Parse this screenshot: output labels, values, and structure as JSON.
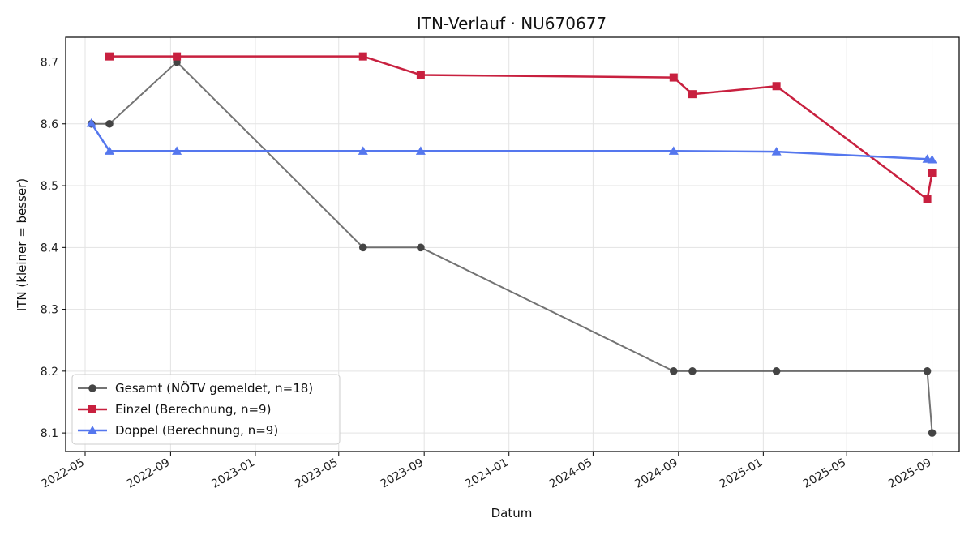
{
  "chart_data": {
    "type": "line",
    "title": "ITN-Verlauf · NU670677",
    "xlabel": "Datum",
    "ylabel": "ITN  (kleiner = besser)",
    "ylim": [
      8.07,
      8.74
    ],
    "xlim": [
      "2022-04-03",
      "2025-10-10"
    ],
    "x_ticks": [
      "2022-05",
      "2022-09",
      "2023-01",
      "2023-05",
      "2023-09",
      "2024-01",
      "2024-05",
      "2024-09",
      "2025-01",
      "2025-05",
      "2025-09"
    ],
    "y_ticks": [
      8.1,
      8.2,
      8.3,
      8.4,
      8.5,
      8.6,
      8.7
    ],
    "grid": true,
    "legend_position": "lower-left",
    "series": [
      {
        "name": "Gesamt (NÖTV gemeldet, n=18)",
        "color": "#444444",
        "marker": "circle",
        "points": [
          {
            "x": "2022-05-10",
            "y": 8.6
          },
          {
            "x": "2022-06-05",
            "y": 8.6
          },
          {
            "x": "2022-09-10",
            "y": 8.7
          },
          {
            "x": "2023-06-05",
            "y": 8.4
          },
          {
            "x": "2023-08-27",
            "y": 8.4
          },
          {
            "x": "2024-08-25",
            "y": 8.2
          },
          {
            "x": "2024-09-21",
            "y": 8.2
          },
          {
            "x": "2025-01-20",
            "y": 8.2
          },
          {
            "x": "2025-08-25",
            "y": 8.2
          },
          {
            "x": "2025-09-01",
            "y": 8.1
          }
        ]
      },
      {
        "name": "Einzel (Berechnung, n=9)",
        "color": "#c8203f",
        "marker": "square",
        "points": [
          {
            "x": "2022-06-05",
            "y": 8.709
          },
          {
            "x": "2022-09-10",
            "y": 8.709
          },
          {
            "x": "2023-06-05",
            "y": 8.709
          },
          {
            "x": "2023-08-27",
            "y": 8.679
          },
          {
            "x": "2024-08-25",
            "y": 8.675
          },
          {
            "x": "2024-09-21",
            "y": 8.648
          },
          {
            "x": "2025-01-20",
            "y": 8.661
          },
          {
            "x": "2025-08-25",
            "y": 8.478
          },
          {
            "x": "2025-09-01",
            "y": 8.521
          }
        ]
      },
      {
        "name": "Doppel (Berechnung, n=9)",
        "color": "#5577ee",
        "marker": "triangle",
        "points": [
          {
            "x": "2022-05-10",
            "y": 8.601
          },
          {
            "x": "2022-06-05",
            "y": 8.556
          },
          {
            "x": "2022-09-10",
            "y": 8.556
          },
          {
            "x": "2023-06-05",
            "y": 8.556
          },
          {
            "x": "2023-08-27",
            "y": 8.556
          },
          {
            "x": "2024-08-25",
            "y": 8.556
          },
          {
            "x": "2025-01-20",
            "y": 8.555
          },
          {
            "x": "2025-08-25",
            "y": 8.543
          },
          {
            "x": "2025-09-01",
            "y": 8.542
          }
        ]
      }
    ]
  }
}
